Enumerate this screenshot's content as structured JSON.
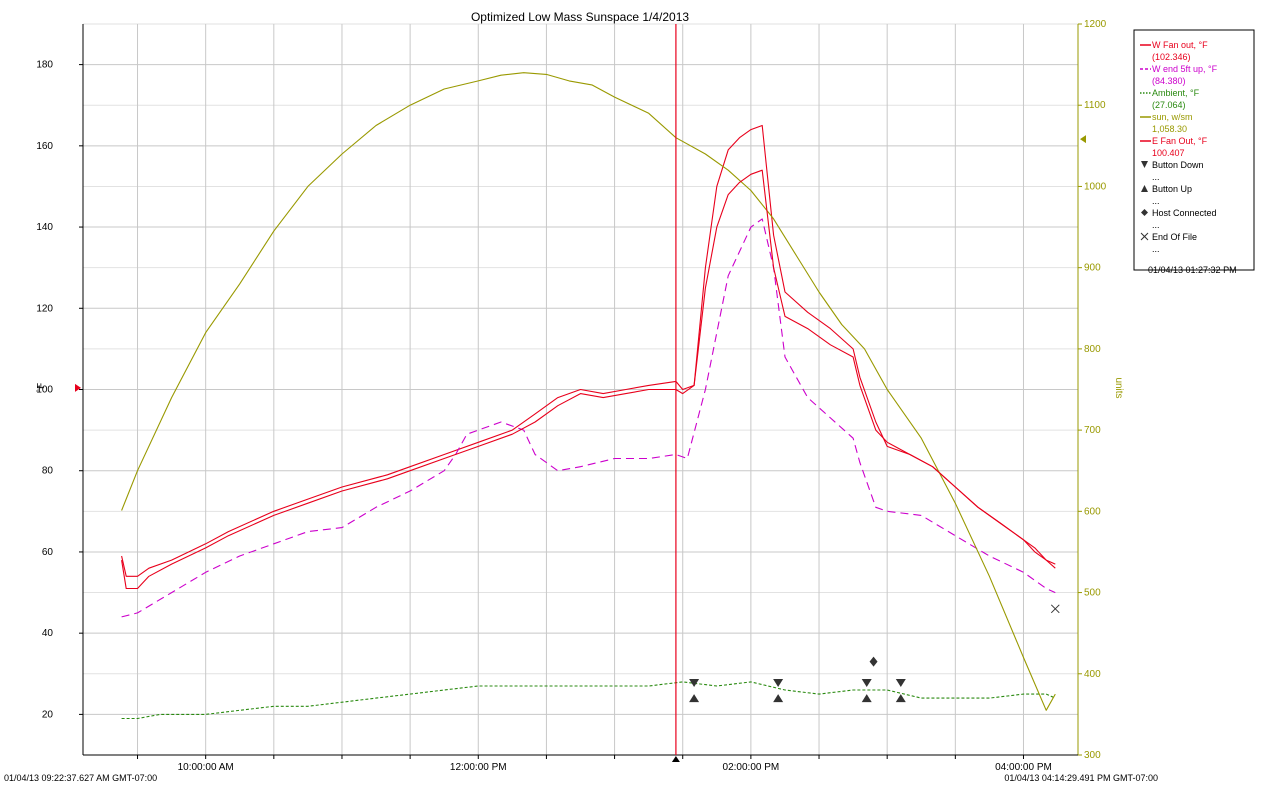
{
  "chart_data": {
    "type": "line",
    "title": "Optimized Low Mass Sunspace 1/4/2013",
    "ylabel": "°F",
    "y2label": "units",
    "xlim": [
      "09:06",
      "16:24"
    ],
    "ylim": [
      10,
      190
    ],
    "y2lim": [
      300,
      1200
    ],
    "grid": true,
    "x_ticks": [
      {
        "time": "09:30",
        "label": ""
      },
      {
        "time": "10:00",
        "label": "10:00:00 AM"
      },
      {
        "time": "10:30",
        "label": ""
      },
      {
        "time": "11:00",
        "label": ""
      },
      {
        "time": "11:30",
        "label": ""
      },
      {
        "time": "12:00",
        "label": "12:00:00 PM"
      },
      {
        "time": "12:30",
        "label": ""
      },
      {
        "time": "13:00",
        "label": ""
      },
      {
        "time": "13:30",
        "label": ""
      },
      {
        "time": "14:00",
        "label": "02:00:00 PM"
      },
      {
        "time": "14:30",
        "label": ""
      },
      {
        "time": "15:00",
        "label": ""
      },
      {
        "time": "15:30",
        "label": ""
      },
      {
        "time": "16:00",
        "label": "04:00:00 PM"
      }
    ],
    "y_ticks": [
      20,
      40,
      60,
      80,
      100,
      120,
      140,
      160,
      180
    ],
    "y2_ticks": [
      300,
      400,
      500,
      600,
      700,
      800,
      900,
      1000,
      1100,
      1200
    ],
    "cursor_time": "13:27",
    "start_label": "01/04/13 09:22:37.627 AM GMT-07:00",
    "end_label": "01/04/13 04:14:29.491 PM GMT-07:00",
    "series": [
      {
        "name": "W Fan out, °F",
        "readout": "(102.346)",
        "axis": "left",
        "color": "#e8001c",
        "dash": "",
        "x": [
          "09:23",
          "09:25",
          "09:30",
          "09:35",
          "09:45",
          "10:00",
          "10:10",
          "10:30",
          "10:45",
          "11:00",
          "11:20",
          "11:30",
          "11:45",
          "12:00",
          "12:15",
          "12:25",
          "12:35",
          "12:45",
          "12:55",
          "13:05",
          "13:15",
          "13:27",
          "13:30",
          "13:35",
          "13:40",
          "13:45",
          "13:50",
          "13:55",
          "14:00",
          "14:05",
          "14:10",
          "14:15",
          "14:25",
          "14:35",
          "14:45",
          "14:48",
          "14:55",
          "15:00",
          "15:10",
          "15:20",
          "15:30",
          "15:40",
          "15:50",
          "16:00",
          "16:05",
          "16:10",
          "16:14"
        ],
        "y": [
          59,
          54,
          54,
          56,
          58,
          62,
          65,
          70,
          73,
          76,
          79,
          81,
          84,
          87,
          90,
          94,
          98,
          100,
          99,
          100,
          101,
          102,
          100,
          101,
          130,
          150,
          159,
          162,
          164,
          165,
          138,
          124,
          119,
          115,
          110,
          103,
          92,
          86,
          84,
          81,
          76,
          71,
          67,
          63,
          61,
          58,
          56
        ]
      },
      {
        "name": "W end 5ft up, °F",
        "readout": "(84.380)",
        "axis": "left",
        "color": "#cc00cc",
        "dash": "8,5",
        "x": [
          "09:23",
          "09:30",
          "09:45",
          "10:00",
          "10:15",
          "10:30",
          "10:45",
          "11:00",
          "11:15",
          "11:30",
          "11:45",
          "11:50",
          "11:55",
          "12:00",
          "12:10",
          "12:20",
          "12:25",
          "12:35",
          "12:45",
          "13:00",
          "13:15",
          "13:27",
          "13:32",
          "13:40",
          "13:50",
          "14:00",
          "14:05",
          "14:10",
          "14:15",
          "14:25",
          "14:35",
          "14:45",
          "14:48",
          "14:55",
          "15:00",
          "15:15",
          "15:30",
          "15:45",
          "16:00",
          "16:10",
          "16:14"
        ],
        "y": [
          44,
          45,
          50,
          55,
          59,
          62,
          65,
          66,
          71,
          75,
          80,
          84,
          89,
          90,
          92,
          90,
          84,
          80,
          81,
          83,
          83,
          84,
          83,
          100,
          128,
          140,
          142,
          130,
          108,
          98,
          93,
          88,
          82,
          71,
          70,
          69,
          64,
          59,
          55,
          51,
          50
        ]
      },
      {
        "name": "Ambient, °F",
        "readout": "(27.064)",
        "axis": "left",
        "color": "#2a8a10",
        "dash": "3,2",
        "x": [
          "09:23",
          "09:30",
          "09:40",
          "09:50",
          "10:00",
          "10:15",
          "10:30",
          "10:45",
          "11:00",
          "11:15",
          "11:30",
          "11:45",
          "12:00",
          "12:15",
          "12:30",
          "12:45",
          "13:00",
          "13:15",
          "13:30",
          "13:45",
          "14:00",
          "14:15",
          "14:30",
          "14:45",
          "15:00",
          "15:15",
          "15:30",
          "15:45",
          "16:00",
          "16:10",
          "16:14"
        ],
        "y": [
          19,
          19,
          20,
          20,
          20,
          21,
          22,
          22,
          23,
          24,
          25,
          26,
          27,
          27,
          27,
          27,
          27,
          27,
          28,
          27,
          28,
          26,
          25,
          26,
          26,
          24,
          24,
          24,
          25,
          25,
          24
        ]
      },
      {
        "name": "sun, w/sm",
        "readout": "1,058.30",
        "axis": "right",
        "color": "#999900",
        "dash": "",
        "x": [
          "09:23",
          "09:30",
          "09:45",
          "10:00",
          "10:15",
          "10:30",
          "10:45",
          "11:00",
          "11:15",
          "11:30",
          "11:45",
          "12:00",
          "12:10",
          "12:20",
          "12:30",
          "12:40",
          "12:50",
          "13:00",
          "13:15",
          "13:27",
          "13:40",
          "13:50",
          "14:00",
          "14:10",
          "14:20",
          "14:30",
          "14:40",
          "14:50",
          "15:00",
          "15:15",
          "15:30",
          "15:45",
          "16:00",
          "16:10",
          "16:14"
        ],
        "y": [
          601,
          650,
          740,
          820,
          880,
          945,
          1000,
          1040,
          1075,
          1100,
          1120,
          1130,
          1137,
          1140,
          1138,
          1130,
          1125,
          1110,
          1090,
          1060,
          1040,
          1020,
          995,
          960,
          915,
          870,
          830,
          800,
          750,
          690,
          610,
          520,
          420,
          355,
          375
        ]
      },
      {
        "name": "E Fan Out, °F",
        "readout": "100.407",
        "axis": "left",
        "color": "#e8001c",
        "dash": "",
        "x": [
          "09:23",
          "09:25",
          "09:30",
          "09:35",
          "09:45",
          "10:00",
          "10:10",
          "10:30",
          "10:45",
          "11:00",
          "11:20",
          "11:30",
          "11:45",
          "12:00",
          "12:15",
          "12:25",
          "12:35",
          "12:45",
          "12:55",
          "13:05",
          "13:15",
          "13:27",
          "13:30",
          "13:35",
          "13:40",
          "13:45",
          "13:50",
          "13:55",
          "14:00",
          "14:05",
          "14:10",
          "14:15",
          "14:25",
          "14:35",
          "14:45",
          "14:48",
          "14:55",
          "15:00",
          "15:10",
          "15:20",
          "15:30",
          "15:40",
          "15:50",
          "16:00",
          "16:05",
          "16:10",
          "16:14"
        ],
        "y": [
          58,
          51,
          51,
          54,
          57,
          61,
          64,
          69,
          72,
          75,
          78,
          80,
          83,
          86,
          89,
          92,
          96,
          99,
          98,
          99,
          100,
          100,
          99,
          101,
          125,
          140,
          148,
          151,
          153,
          154,
          130,
          118,
          115,
          111,
          108,
          101,
          90,
          87,
          84,
          81,
          76,
          71,
          67,
          63,
          60,
          58,
          57
        ]
      }
    ],
    "markers": [
      {
        "type": "button-down",
        "name": "Button Down",
        "points": [
          {
            "x": "13:35",
            "y": 26
          },
          {
            "x": "14:12",
            "y": 26
          },
          {
            "x": "14:51",
            "y": 26
          },
          {
            "x": "15:06",
            "y": 26
          }
        ]
      },
      {
        "type": "button-up",
        "name": "Button Up",
        "points": [
          {
            "x": "13:35",
            "y": 25
          },
          {
            "x": "14:12",
            "y": 25
          },
          {
            "x": "14:51",
            "y": 25
          },
          {
            "x": "15:06",
            "y": 25
          }
        ]
      },
      {
        "type": "host-connected",
        "name": "Host Connected",
        "points": [
          {
            "x": "14:54",
            "y": 33
          }
        ]
      },
      {
        "type": "end-of-file",
        "name": "End Of File",
        "points": [
          {
            "x": "16:14",
            "y": 46
          }
        ]
      }
    ],
    "legend": {
      "placement": "right",
      "entries": [
        {
          "label": "W Fan out, °F",
          "value": "(102.346)",
          "color": "#e8001c",
          "symbol": "line"
        },
        {
          "label": "W end 5ft up, °F",
          "value": "(84.380)",
          "color": "#cc00cc",
          "symbol": "dashed"
        },
        {
          "label": "Ambient, °F",
          "value": "(27.064)",
          "color": "#2a8a10",
          "symbol": "dotted"
        },
        {
          "label": "sun, w/sm",
          "value": "1,058.30",
          "color": "#999900",
          "symbol": "line"
        },
        {
          "label": "E Fan Out, °F",
          "value": "100.407",
          "color": "#e8001c",
          "symbol": "line"
        },
        {
          "label": "Button Down",
          "value": "...",
          "color": "#000000",
          "symbol": "triangle-down"
        },
        {
          "label": "Button Up",
          "value": "...",
          "color": "#000000",
          "symbol": "triangle-up"
        },
        {
          "label": "Host Connected",
          "value": "...",
          "color": "#000000",
          "symbol": "diamond"
        },
        {
          "label": "End Of File",
          "value": "...",
          "color": "#000000",
          "symbol": "x"
        }
      ],
      "timestamp": "01/04/13 01:27:32 PM"
    },
    "colors": {
      "grid": "#c8c8c8",
      "axis_right": "#999900",
      "cursor": "#e8001c",
      "background": "#ffffff"
    }
  }
}
